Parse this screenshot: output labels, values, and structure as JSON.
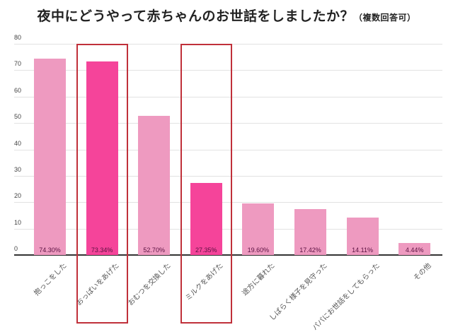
{
  "title": {
    "main": "夜中にどうやって赤ちゃんのお世話をしましたか？",
    "sub": "（複数回答可）"
  },
  "colors": {
    "bar_default": "#EE9AC0",
    "bar_highlight": "#F5449A",
    "highlight_box": "#C0303A"
  },
  "y_ticks": [
    "0",
    "10",
    "20",
    "30",
    "40",
    "50",
    "60",
    "70",
    "80"
  ],
  "chart_data": {
    "type": "bar",
    "title": "夜中にどうやって赤ちゃんのお世話をしましたか？（複数回答可）",
    "xlabel": "",
    "ylabel": "",
    "ylim": [
      0,
      80
    ],
    "grid": true,
    "legend": "none",
    "categories": [
      "抱っこをした",
      "おっぱいをあげた",
      "おむつを交換した",
      "ミルクをあげた",
      "途方に暮れた",
      "しばらく様子を見守った",
      "パパにお世話をしてもらった",
      "その他"
    ],
    "values": [
      74.3,
      73.34,
      52.7,
      27.35,
      19.6,
      17.42,
      14.11,
      4.44
    ],
    "value_labels": [
      "74.30%",
      "73.34%",
      "52.70%",
      "27.35%",
      "19.60%",
      "17.42%",
      "14.11%",
      "4.44%"
    ],
    "highlighted": [
      false,
      true,
      false,
      true,
      false,
      false,
      false,
      false
    ]
  }
}
